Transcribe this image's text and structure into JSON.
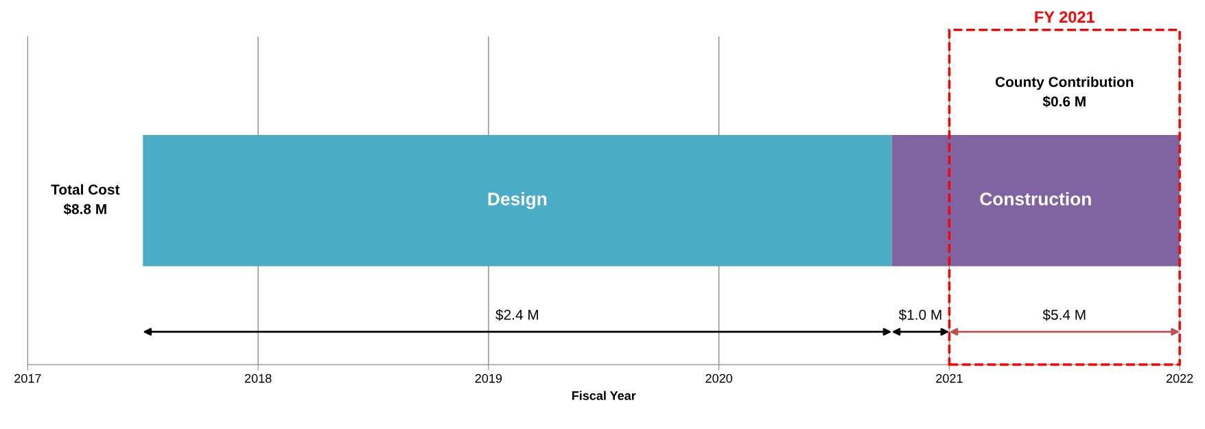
{
  "chart_data": {
    "type": "bar",
    "orientation": "horizontal",
    "categories": [
      null
    ],
    "series": [
      {
        "name": "Design",
        "color": "#4bacc6",
        "values": [
          3.25
        ],
        "base": [
          2017.5
        ]
      },
      {
        "name": "Construction",
        "color": "#8064a2",
        "values": [
          1.25
        ],
        "base": [
          2020.75
        ]
      }
    ],
    "xlabel": "Fiscal Year",
    "xlim": [
      2017,
      2022
    ],
    "xticks": [
      2017,
      2018,
      2019,
      2020,
      2021,
      2022
    ],
    "grid": "x",
    "legend": false,
    "annotations": [
      "Total Cost\n$8.8 M",
      "$2.4 M",
      "$1.0 M",
      "$5.4 M",
      "County Contribution\n$0.6 M",
      "FY 2021"
    ]
  }
}
